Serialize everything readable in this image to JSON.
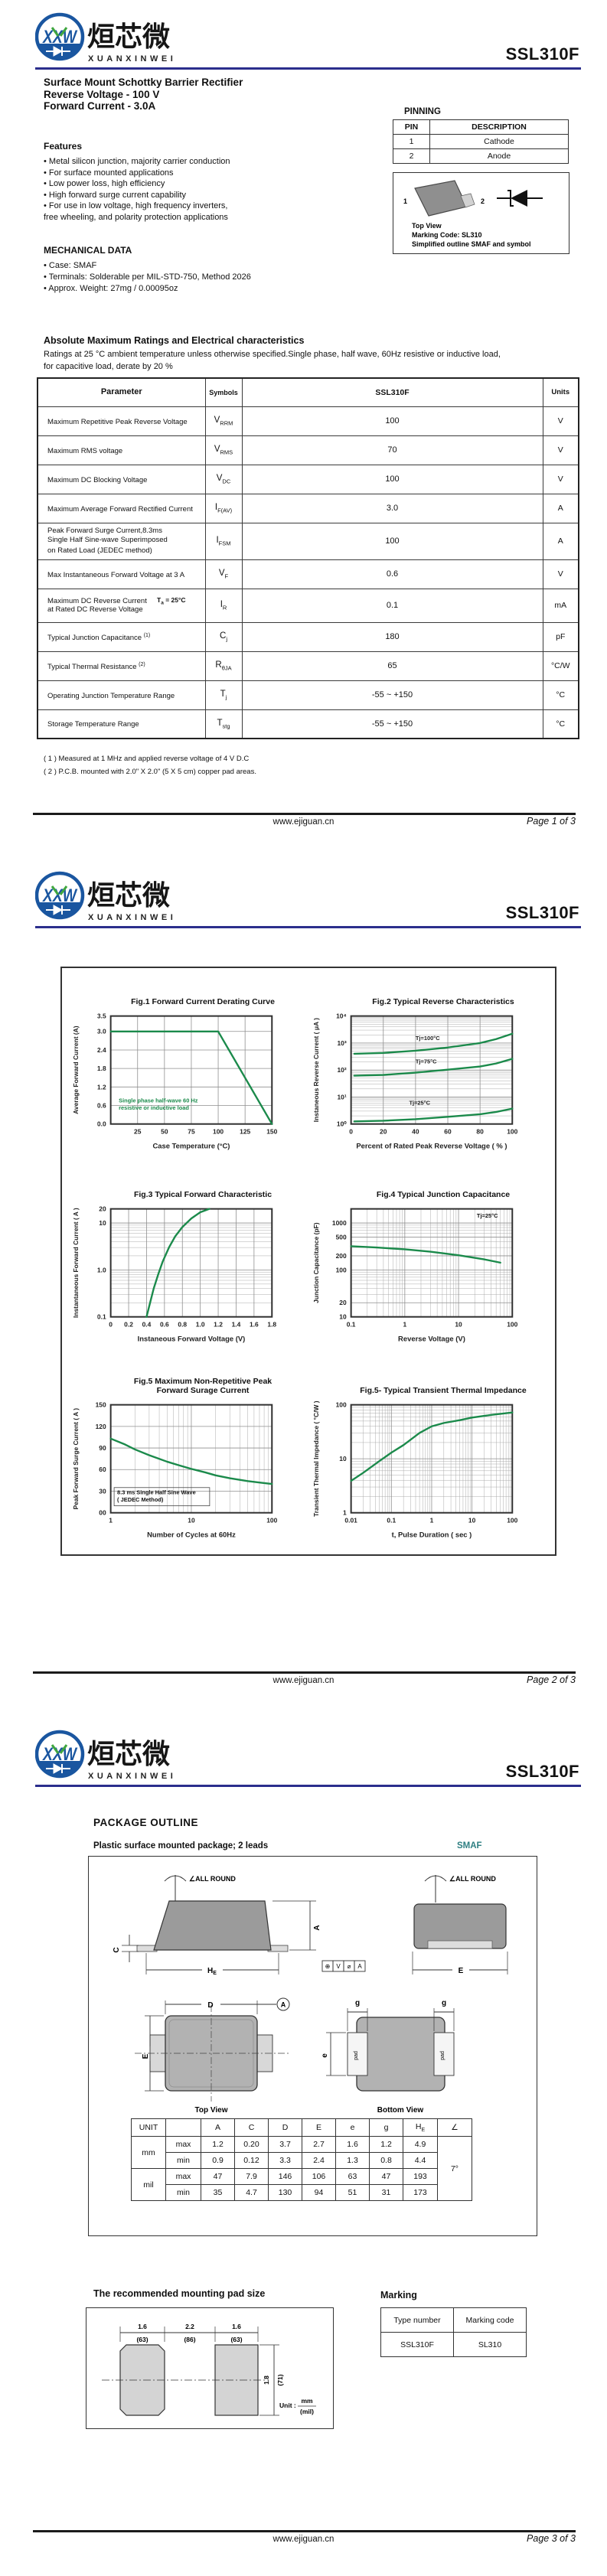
{
  "part_number": "SSL310F",
  "brand": {
    "cn": "烜芯微",
    "en": "XUANXINWEI",
    "logo_letters": "XXW"
  },
  "colors": {
    "accent_rule": "#2b2e8c",
    "chart_line": "#1b8a4b",
    "smaf_teal": "#2e7f82"
  },
  "footer": {
    "site": "www.ejiguan.cn",
    "page1": "Page 1 of 3",
    "page2": "Page 2 of 3",
    "page3": "Page 3 of 3"
  },
  "page1": {
    "title_lines": "Surface Mount Schottky Barrier Rectifier\nReverse Voltage - 100 V\nForward Current - 3.0A",
    "features": {
      "heading": "Features",
      "items": [
        "• Metal silicon junction, majority carrier conduction",
        "• For surface mounted applications",
        "• Low power loss, high efficiency",
        "• High forward surge current capability",
        "• For use in low voltage, high frequency inverters,\n  free wheeling, and polarity protection applications"
      ]
    },
    "mechanical": {
      "heading": "MECHANICAL DATA",
      "items": [
        "• Case: SMAF",
        "• Terminals: Solderable per MIL-STD-750, Method 2026",
        "• Approx. Weight: 27mg  /  0.00095oz"
      ]
    },
    "pinning": {
      "heading": "PINNING",
      "col_pin": "PIN",
      "col_desc": "DESCRIPTION",
      "rows": [
        {
          "pin": "1",
          "desc": "Cathode"
        },
        {
          "pin": "2",
          "desc": "Anode"
        }
      ]
    },
    "package_box": {
      "pin1": "1",
      "pin2": "2",
      "line1": "Top View",
      "line2": "Marking Code: SL310",
      "line3": "Simplified outline SMAF and symbol"
    },
    "ratings": {
      "heading": "Absolute Maximum Ratings and Electrical characteristics",
      "intro": "Ratings at 25 °C ambient temperature unless otherwise specified.Single phase, half wave, 60Hz resistive or inductive load,\nfor capacitive load,  derate by 20 %",
      "headers": {
        "param": "Parameter",
        "symbols": "Symbols",
        "value": "SSL310F",
        "units": "Units"
      },
      "rows": [
        {
          "param": "Maximum Repetitive Peak Reverse Voltage",
          "sym": "V",
          "sub": "RRM",
          "value": "100",
          "units": "V"
        },
        {
          "param": "Maximum RMS voltage",
          "sym": "V",
          "sub": "RMS",
          "value": "70",
          "units": "V"
        },
        {
          "param": "Maximum DC Blocking Voltage",
          "sym": "V",
          "sub": "DC",
          "value": "100",
          "units": "V"
        },
        {
          "param": "Maximum Average Forward Rectified Current",
          "sym": "I",
          "sub": "F(AV)",
          "value": "3.0",
          "units": "A"
        },
        {
          "param": "Peak Forward Surge Current,8.3ms\nSingle Half Sine-wave Superimposed\non Rated Load (JEDEC method)",
          "sym": "I",
          "sub": "FSM",
          "value": "100",
          "units": "A"
        },
        {
          "param": "Max Instantaneous Forward Voltage at 3 A",
          "sym": "V",
          "sub": "F",
          "value": "0.6",
          "units": "V"
        },
        {
          "param": "Maximum DC Reverse Current\nat Rated DC Reverse Voltage",
          "cond_base": "T",
          "cond_sub": "a",
          "cond_rest": " = 25°C",
          "sym": "I",
          "sub": "R",
          "value": "0.1",
          "units": "mA"
        },
        {
          "param": "Typical Junction Capacitance",
          "sup": "(1)",
          "sym": "C",
          "sub": "j",
          "value": "180",
          "units": "pF"
        },
        {
          "param": "Typical Thermal Resistance",
          "sup": "(2)",
          "sym": "R",
          "sub": "θJA",
          "value": "65",
          "units": "°C/W"
        },
        {
          "param": "Operating Junction Temperature Range",
          "sym": "T",
          "sub": "j",
          "value": "-55 ~ +150",
          "units": "°C"
        },
        {
          "param": "Storage Temperature Range",
          "sym": "T",
          "sub": "stg",
          "value": "-55 ~ +150",
          "units": "°C"
        }
      ],
      "notes": [
        "( 1 ) Measured at 1 MHz and applied reverse voltage of 4 V D.C",
        "( 2 ) P.C.B. mounted with 2.0\" X 2.0\" (5 X 5 cm) copper pad areas."
      ]
    }
  },
  "chart_data": [
    {
      "type": "line",
      "title": "Fig.1  Forward Current Derating Curve",
      "xlabel": "Case Temperature (°C)",
      "ylabel": "Average Forward Current (A)",
      "xscale": "linear",
      "yscale": "linear",
      "xlim": [
        0,
        150
      ],
      "ylim": [
        0,
        3.5
      ],
      "xticks": [
        {
          "v": 25,
          "t": "25"
        },
        {
          "v": 50,
          "t": "50"
        },
        {
          "v": 75,
          "t": "75"
        },
        {
          "v": 100,
          "t": "100"
        },
        {
          "v": 125,
          "t": "125"
        },
        {
          "v": 150,
          "t": "150"
        }
      ],
      "yticks": [
        {
          "v": 0,
          "t": "0.0"
        },
        {
          "v": 0.6,
          "t": "0.6"
        },
        {
          "v": 1.2,
          "t": "1.2"
        },
        {
          "v": 1.8,
          "t": "1.8"
        },
        {
          "v": 2.4,
          "t": "2.4"
        },
        {
          "v": 3.0,
          "t": "3.0"
        },
        {
          "v": 3.5,
          "t": "3.5"
        }
      ],
      "series": [
        {
          "name": "IF(AV) derating",
          "points": [
            [
              0,
              3.0
            ],
            [
              100,
              3.0
            ],
            [
              150,
              0
            ]
          ]
        }
      ],
      "notes": [
        {
          "text": "Single phase half-wave 60 Hz\nresistive or inductive load",
          "fx": 0.05,
          "fy": 0.8,
          "color": "#1b8a4b"
        }
      ]
    },
    {
      "type": "line",
      "title": "Fig.2  Typical Reverse Characteristics",
      "xlabel": "Percent of Rated Peak Reverse Voltage ( % )",
      "ylabel": "Instaneous Reverse Current ( μA )",
      "xscale": "linear",
      "yscale": "log",
      "xlim": [
        0,
        100
      ],
      "ylim": [
        1,
        10000
      ],
      "xticks": [
        {
          "v": 0,
          "t": "0"
        },
        {
          "v": 20,
          "t": "20"
        },
        {
          "v": 40,
          "t": "40"
        },
        {
          "v": 60,
          "t": "60"
        },
        {
          "v": 80,
          "t": "80"
        },
        {
          "v": 100,
          "t": "100"
        }
      ],
      "yticks": [
        {
          "v": 1,
          "t": "10⁰"
        },
        {
          "v": 10,
          "t": "10¹"
        },
        {
          "v": 100,
          "t": "10²"
        },
        {
          "v": 1000,
          "t": "10³"
        },
        {
          "v": 10000,
          "t": "10⁴"
        }
      ],
      "yminor": true,
      "series": [
        {
          "name": "Tj=100°C",
          "label": "Tj=100°C",
          "label_at": [
            40,
            1300
          ],
          "points": [
            [
              2,
              400
            ],
            [
              20,
              430
            ],
            [
              40,
              520
            ],
            [
              60,
              680
            ],
            [
              80,
              1000
            ],
            [
              90,
              1400
            ],
            [
              100,
              2200
            ]
          ]
        },
        {
          "name": "Tj=75°C",
          "label": "Tj=75°C",
          "label_at": [
            40,
            175
          ],
          "points": [
            [
              2,
              62
            ],
            [
              20,
              66
            ],
            [
              40,
              80
            ],
            [
              60,
              103
            ],
            [
              80,
              135
            ],
            [
              90,
              175
            ],
            [
              100,
              260
            ]
          ]
        },
        {
          "name": "Tj=25°C",
          "label": "Tj=25°C",
          "label_at": [
            36,
            5.2
          ],
          "points": [
            [
              2,
              1.25
            ],
            [
              20,
              1.32
            ],
            [
              40,
              1.5
            ],
            [
              60,
              1.85
            ],
            [
              80,
              2.3
            ],
            [
              90,
              2.8
            ],
            [
              100,
              3.7
            ]
          ]
        }
      ]
    },
    {
      "type": "line",
      "title": "Fig.3  Typical Forward Characteristic",
      "xlabel": "Instaneous Forward Voltage (V)",
      "ylabel": "Instantaneous Forward Current ( A )",
      "xscale": "linear",
      "yscale": "log",
      "xlim": [
        0,
        1.8
      ],
      "ylim": [
        0.1,
        20
      ],
      "xticks": [
        {
          "v": 0,
          "t": "0"
        },
        {
          "v": 0.2,
          "t": "0.2"
        },
        {
          "v": 0.4,
          "t": "0.4"
        },
        {
          "v": 0.6,
          "t": "0.6"
        },
        {
          "v": 0.8,
          "t": "0.8"
        },
        {
          "v": 1.0,
          "t": "1.0"
        },
        {
          "v": 1.2,
          "t": "1.2"
        },
        {
          "v": 1.4,
          "t": "1.4"
        },
        {
          "v": 1.6,
          "t": "1.6"
        },
        {
          "v": 1.8,
          "t": "1.8"
        }
      ],
      "yticks": [
        {
          "v": 0.1,
          "t": "0.1"
        },
        {
          "v": 1,
          "t": "1.0"
        },
        {
          "v": 10,
          "t": "10"
        },
        {
          "v": 20,
          "t": "20"
        }
      ],
      "yminor": true,
      "series": [
        {
          "name": "VF",
          "points": [
            [
              0.4,
              0.1
            ],
            [
              0.44,
              0.2
            ],
            [
              0.48,
              0.4
            ],
            [
              0.53,
              0.8
            ],
            [
              0.58,
              1.5
            ],
            [
              0.65,
              3.0
            ],
            [
              0.72,
              5.2
            ],
            [
              0.8,
              8.2
            ],
            [
              0.9,
              12.5
            ],
            [
              1.0,
              17
            ],
            [
              1.1,
              20
            ]
          ]
        }
      ]
    },
    {
      "type": "line",
      "title": "Fig.4  Typical Junction Capacitance",
      "xlabel": "Reverse  Voltage (V)",
      "ylabel": "Junction Capacitance (pF)",
      "xscale": "log",
      "yscale": "log",
      "xlim": [
        0.1,
        100
      ],
      "ylim": [
        10,
        2000
      ],
      "xticks": [
        {
          "v": 0.1,
          "t": "0.1"
        },
        {
          "v": 1,
          "t": "1"
        },
        {
          "v": 10,
          "t": "10"
        },
        {
          "v": 100,
          "t": "100"
        }
      ],
      "yticks": [
        {
          "v": 10,
          "t": "10"
        },
        {
          "v": 20,
          "t": "20"
        },
        {
          "v": 100,
          "t": "100"
        },
        {
          "v": 200,
          "t": "200"
        },
        {
          "v": 500,
          "t": "500"
        },
        {
          "v": 1000,
          "t": "1000"
        }
      ],
      "xminor": true,
      "yminor": true,
      "series": [
        {
          "name": "Cj",
          "points": [
            [
              0.1,
              320
            ],
            [
              0.3,
              300
            ],
            [
              1,
              275
            ],
            [
              3,
              245
            ],
            [
              10,
              205
            ],
            [
              30,
              168
            ],
            [
              60,
              143
            ]
          ]
        }
      ],
      "notes": [
        {
          "text": "Tj=25°C",
          "fx": 0.78,
          "fy": 0.08,
          "color": "#111"
        }
      ]
    },
    {
      "type": "line",
      "title": "Fig.5  Maximum Non-Repetitive Peak\nForward Surage Current",
      "xlabel": "Number of Cycles at 60Hz",
      "ylabel": "Peak Forward Surge Current ( A )",
      "xscale": "log",
      "yscale": "linear",
      "xlim": [
        1,
        100
      ],
      "ylim": [
        0,
        150
      ],
      "xticks": [
        {
          "v": 1,
          "t": "1"
        },
        {
          "v": 10,
          "t": "10"
        },
        {
          "v": 100,
          "t": "100"
        }
      ],
      "yticks": [
        {
          "v": 0,
          "t": "00"
        },
        {
          "v": 30,
          "t": "30"
        },
        {
          "v": 60,
          "t": "60"
        },
        {
          "v": 90,
          "t": "90"
        },
        {
          "v": 120,
          "t": "120"
        },
        {
          "v": 150,
          "t": "150"
        }
      ],
      "xminor": true,
      "series": [
        {
          "name": "IFSM",
          "points": [
            [
              1,
              103
            ],
            [
              1.5,
              95
            ],
            [
              2,
              88
            ],
            [
              3,
              80
            ],
            [
              5,
              71
            ],
            [
              7,
              66
            ],
            [
              10,
              61
            ],
            [
              15,
              56
            ],
            [
              20,
              52
            ],
            [
              30,
              48
            ],
            [
              50,
              44
            ],
            [
              70,
              42
            ],
            [
              100,
              40
            ]
          ]
        }
      ],
      "notes": [
        {
          "text": "8.3 ms Single Half Sine Wave\n( JEDEC Method)",
          "fx": 0.04,
          "fy": 0.83,
          "color": "#111",
          "box": true
        }
      ]
    },
    {
      "type": "line",
      "title": "Fig.5- Typical Transient Thermal Impedance",
      "xlabel": "t, Pulse Duration ( sec )",
      "ylabel": "Transient Thermal Impedance ( °C/W )",
      "xscale": "log",
      "yscale": "log",
      "xlim": [
        0.01,
        100
      ],
      "ylim": [
        1,
        100
      ],
      "xticks": [
        {
          "v": 0.01,
          "t": "0.01"
        },
        {
          "v": 0.1,
          "t": "0.1"
        },
        {
          "v": 1,
          "t": "1"
        },
        {
          "v": 10,
          "t": "10"
        },
        {
          "v": 100,
          "t": "100"
        }
      ],
      "yticks": [
        {
          "v": 1,
          "t": "1"
        },
        {
          "v": 10,
          "t": "10"
        },
        {
          "v": 100,
          "t": "100"
        }
      ],
      "xminor": true,
      "yminor": true,
      "series": [
        {
          "name": "Zth",
          "points": [
            [
              0.01,
              3.9
            ],
            [
              0.02,
              5.5
            ],
            [
              0.05,
              9
            ],
            [
              0.1,
              13
            ],
            [
              0.2,
              18
            ],
            [
              0.5,
              30
            ],
            [
              1,
              40
            ],
            [
              2,
              46
            ],
            [
              5,
              52
            ],
            [
              10,
              58
            ],
            [
              30,
              65
            ],
            [
              100,
              72
            ]
          ]
        }
      ]
    }
  ],
  "page3": {
    "heading": "PACKAGE  OUTLINE",
    "subtitle": "Plastic surface mounted package; 2 leads",
    "package_name": "SMAF",
    "outline": {
      "all_round": "∠ALL ROUND",
      "lbl_A": "A",
      "lbl_C": "C",
      "lbl_D": "D",
      "lbl_E": "E",
      "lbl_e": "e",
      "lbl_g": "g",
      "lbl_He_base": "H",
      "lbl_He_sub": "E",
      "pad": "pad",
      "top_view": "Top View",
      "bottom_view": "Bottom View",
      "datum": "A",
      "fcf": [
        "⊕",
        "V",
        "⌀",
        "A"
      ]
    },
    "dim_table": {
      "unit_header": "UNIT",
      "angle_header": "∠",
      "cols": [
        "A",
        "C",
        "D",
        "E",
        "e",
        "g"
      ],
      "he_base": "H",
      "he_sub": "E",
      "mm": "mm",
      "mil": "mil",
      "max": "max",
      "min": "min",
      "mm_max": [
        "1.2",
        "0.20",
        "3.7",
        "2.7",
        "1.6",
        "1.2",
        "4.9"
      ],
      "mm_min": [
        "0.9",
        "0.12",
        "3.3",
        "2.4",
        "1.3",
        "0.8",
        "4.4"
      ],
      "mil_max": [
        "47",
        "7.9",
        "146",
        "106",
        "63",
        "47",
        "193"
      ],
      "mil_min": [
        "35",
        "4.7",
        "130",
        "94",
        "51",
        "31",
        "173"
      ],
      "angle": "7°"
    },
    "pad_section": {
      "heading": "The recommended mounting pad size",
      "w1": "1.6",
      "w1_mil": "(63)",
      "gap": "2.2",
      "gap_mil": "(86)",
      "w2": "1.6",
      "w2_mil": "(63)",
      "h": "1.8",
      "h_mil": "(71)",
      "unit_label": "Unit :",
      "unit_top": "mm",
      "unit_bottom": "(mil)"
    },
    "marking": {
      "heading": "Marking",
      "col_type": "Type number",
      "col_code": "Marking code",
      "type": "SSL310F",
      "code": "SL310"
    }
  }
}
